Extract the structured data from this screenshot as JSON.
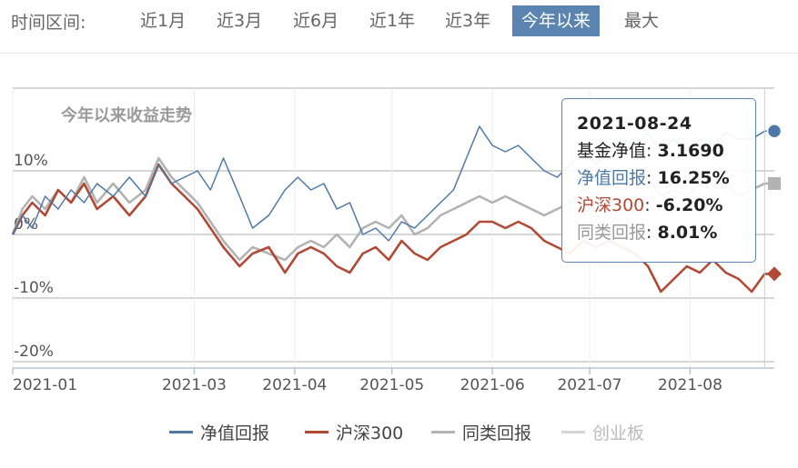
{
  "range_bar": {
    "label": "时间区间:",
    "options": [
      "近1月",
      "近3月",
      "近6月",
      "近1年",
      "近3年",
      "今年以来",
      "最大"
    ],
    "active_index": 5
  },
  "colors": {
    "nav_return": "#4e79a7",
    "hs300": "#b14a35",
    "peer": "#b3b3b3",
    "cyb": "#d4d4d4",
    "grid": "#c8c8c8",
    "axis": "#b5c5d8",
    "accent": "#5b84b1"
  },
  "chart_data": {
    "type": "line",
    "title": "今年以来收益走势",
    "y_unit": "%",
    "ylim": [
      -21,
      23
    ],
    "yticks": [
      -20,
      -10,
      0,
      10
    ],
    "ytick_labels": [
      "-20%",
      "-10%",
      "0%",
      "10%"
    ],
    "x_start": "2021-01-04",
    "x_end": "2021-08-27",
    "xticks": [
      "2021-01-04",
      "2021-03-01",
      "2021-04-01",
      "2021-05-01",
      "2021-06-01",
      "2021-07-01",
      "2021-08-01"
    ],
    "xtick_labels": [
      "2021-01",
      "2021-03",
      "2021-04",
      "2021-05",
      "2021-06",
      "2021-07",
      "2021-08"
    ],
    "grid": true,
    "legend_position": "bottom",
    "series": [
      {
        "name": "净值回报",
        "values": [
          [
            "2021-01-04",
            0
          ],
          [
            "2021-01-07",
            3
          ],
          [
            "2021-01-10",
            1
          ],
          [
            "2021-01-14",
            6
          ],
          [
            "2021-01-18",
            4
          ],
          [
            "2021-01-22",
            7
          ],
          [
            "2021-01-26",
            5
          ],
          [
            "2021-01-30",
            8
          ],
          [
            "2021-02-04",
            6
          ],
          [
            "2021-02-09",
            9
          ],
          [
            "2021-02-14",
            6
          ],
          [
            "2021-02-18",
            11
          ],
          [
            "2021-02-22",
            8
          ],
          [
            "2021-02-26",
            9
          ],
          [
            "2021-03-02",
            10
          ],
          [
            "2021-03-06",
            7
          ],
          [
            "2021-03-10",
            12
          ],
          [
            "2021-03-15",
            6
          ],
          [
            "2021-03-19",
            1
          ],
          [
            "2021-03-24",
            3
          ],
          [
            "2021-03-29",
            7
          ],
          [
            "2021-04-02",
            9
          ],
          [
            "2021-04-06",
            7
          ],
          [
            "2021-04-10",
            8
          ],
          [
            "2021-04-14",
            4
          ],
          [
            "2021-04-18",
            5
          ],
          [
            "2021-04-22",
            0
          ],
          [
            "2021-04-26",
            1
          ],
          [
            "2021-04-30",
            -1
          ],
          [
            "2021-05-04",
            2
          ],
          [
            "2021-05-08",
            1
          ],
          [
            "2021-05-12",
            3
          ],
          [
            "2021-05-16",
            5
          ],
          [
            "2021-05-20",
            7
          ],
          [
            "2021-05-24",
            12
          ],
          [
            "2021-05-28",
            17
          ],
          [
            "2021-06-01",
            14
          ],
          [
            "2021-06-05",
            13
          ],
          [
            "2021-06-09",
            14
          ],
          [
            "2021-06-13",
            12
          ],
          [
            "2021-06-17",
            10
          ],
          [
            "2021-06-21",
            9
          ],
          [
            "2021-06-25",
            11
          ],
          [
            "2021-06-29",
            13
          ],
          [
            "2021-07-03",
            11
          ],
          [
            "2021-07-07",
            13
          ],
          [
            "2021-07-11",
            15
          ],
          [
            "2021-07-15",
            14
          ],
          [
            "2021-07-19",
            16
          ],
          [
            "2021-07-23",
            13
          ],
          [
            "2021-07-27",
            15
          ],
          [
            "2021-07-31",
            13
          ],
          [
            "2021-08-04",
            15
          ],
          [
            "2021-08-08",
            14
          ],
          [
            "2021-08-12",
            16
          ],
          [
            "2021-08-16",
            15
          ],
          [
            "2021-08-20",
            15
          ],
          [
            "2021-08-24",
            16.25
          ],
          [
            "2021-08-27",
            16.25
          ]
        ]
      },
      {
        "name": "沪深300",
        "values": [
          [
            "2021-01-04",
            0
          ],
          [
            "2021-01-07",
            3
          ],
          [
            "2021-01-10",
            5
          ],
          [
            "2021-01-14",
            3
          ],
          [
            "2021-01-18",
            7
          ],
          [
            "2021-01-22",
            5
          ],
          [
            "2021-01-26",
            8
          ],
          [
            "2021-01-30",
            4
          ],
          [
            "2021-02-04",
            6
          ],
          [
            "2021-02-09",
            3
          ],
          [
            "2021-02-14",
            6
          ],
          [
            "2021-02-18",
            11
          ],
          [
            "2021-02-22",
            8
          ],
          [
            "2021-02-26",
            6
          ],
          [
            "2021-03-02",
            4
          ],
          [
            "2021-03-06",
            1
          ],
          [
            "2021-03-10",
            -2
          ],
          [
            "2021-03-15",
            -5
          ],
          [
            "2021-03-19",
            -3
          ],
          [
            "2021-03-24",
            -2
          ],
          [
            "2021-03-29",
            -6
          ],
          [
            "2021-04-02",
            -3
          ],
          [
            "2021-04-06",
            -2
          ],
          [
            "2021-04-10",
            -3
          ],
          [
            "2021-04-14",
            -5
          ],
          [
            "2021-04-18",
            -6
          ],
          [
            "2021-04-22",
            -3
          ],
          [
            "2021-04-26",
            -2
          ],
          [
            "2021-04-30",
            -4
          ],
          [
            "2021-05-04",
            -1
          ],
          [
            "2021-05-08",
            -3
          ],
          [
            "2021-05-12",
            -4
          ],
          [
            "2021-05-16",
            -2
          ],
          [
            "2021-05-20",
            -1
          ],
          [
            "2021-05-24",
            0
          ],
          [
            "2021-05-28",
            2
          ],
          [
            "2021-06-01",
            2
          ],
          [
            "2021-06-05",
            1
          ],
          [
            "2021-06-09",
            2
          ],
          [
            "2021-06-13",
            1
          ],
          [
            "2021-06-17",
            -1
          ],
          [
            "2021-06-21",
            -2
          ],
          [
            "2021-06-25",
            -3
          ],
          [
            "2021-06-29",
            -1
          ],
          [
            "2021-07-03",
            -2
          ],
          [
            "2021-07-07",
            -1
          ],
          [
            "2021-07-11",
            -2
          ],
          [
            "2021-07-15",
            -3
          ],
          [
            "2021-07-19",
            -5
          ],
          [
            "2021-07-23",
            -9
          ],
          [
            "2021-07-27",
            -7
          ],
          [
            "2021-07-31",
            -5
          ],
          [
            "2021-08-04",
            -6
          ],
          [
            "2021-08-08",
            -4
          ],
          [
            "2021-08-12",
            -6
          ],
          [
            "2021-08-16",
            -7
          ],
          [
            "2021-08-20",
            -9
          ],
          [
            "2021-08-24",
            -6.2
          ],
          [
            "2021-08-27",
            -6.2
          ]
        ]
      },
      {
        "name": "同类回报",
        "values": [
          [
            "2021-01-04",
            0
          ],
          [
            "2021-01-07",
            4
          ],
          [
            "2021-01-10",
            6
          ],
          [
            "2021-01-14",
            4
          ],
          [
            "2021-01-18",
            7
          ],
          [
            "2021-01-22",
            5
          ],
          [
            "2021-01-26",
            9
          ],
          [
            "2021-01-30",
            5
          ],
          [
            "2021-02-04",
            8
          ],
          [
            "2021-02-09",
            5
          ],
          [
            "2021-02-14",
            7
          ],
          [
            "2021-02-18",
            12
          ],
          [
            "2021-02-22",
            9
          ],
          [
            "2021-02-26",
            7
          ],
          [
            "2021-03-02",
            5
          ],
          [
            "2021-03-06",
            2
          ],
          [
            "2021-03-10",
            -1
          ],
          [
            "2021-03-15",
            -4
          ],
          [
            "2021-03-19",
            -2
          ],
          [
            "2021-03-24",
            -3
          ],
          [
            "2021-03-29",
            -4
          ],
          [
            "2021-04-02",
            -2
          ],
          [
            "2021-04-06",
            -1
          ],
          [
            "2021-04-10",
            -2
          ],
          [
            "2021-04-14",
            0
          ],
          [
            "2021-04-18",
            -2
          ],
          [
            "2021-04-22",
            1
          ],
          [
            "2021-04-26",
            2
          ],
          [
            "2021-04-30",
            1
          ],
          [
            "2021-05-04",
            3
          ],
          [
            "2021-05-08",
            0
          ],
          [
            "2021-05-12",
            1
          ],
          [
            "2021-05-16",
            3
          ],
          [
            "2021-05-20",
            4
          ],
          [
            "2021-05-24",
            5
          ],
          [
            "2021-05-28",
            6
          ],
          [
            "2021-06-01",
            5
          ],
          [
            "2021-06-05",
            6
          ],
          [
            "2021-06-09",
            5
          ],
          [
            "2021-06-13",
            4
          ],
          [
            "2021-06-17",
            3
          ],
          [
            "2021-06-21",
            4
          ],
          [
            "2021-06-25",
            5
          ],
          [
            "2021-06-29",
            7
          ],
          [
            "2021-07-03",
            6
          ],
          [
            "2021-07-07",
            8
          ],
          [
            "2021-07-11",
            7
          ],
          [
            "2021-07-15",
            8
          ],
          [
            "2021-07-19",
            9
          ],
          [
            "2021-07-23",
            6
          ],
          [
            "2021-07-27",
            7
          ],
          [
            "2021-07-31",
            6
          ],
          [
            "2021-08-04",
            8
          ],
          [
            "2021-08-08",
            7
          ],
          [
            "2021-08-12",
            8
          ],
          [
            "2021-08-16",
            6
          ],
          [
            "2021-08-20",
            7
          ],
          [
            "2021-08-24",
            8.01
          ],
          [
            "2021-08-27",
            8.01
          ]
        ]
      }
    ],
    "end_markers": [
      {
        "series": 0,
        "shape": "circle",
        "value": 16.25
      },
      {
        "series": 2,
        "shape": "square",
        "value": 8.01
      },
      {
        "series": 1,
        "shape": "diamond",
        "value": -6.2
      }
    ],
    "tooltip": {
      "date": "2021-08-24",
      "rows": [
        {
          "label": "基金净值",
          "value": "3.1690"
        },
        {
          "label": "净值回报",
          "value": "16.25%"
        },
        {
          "label": "沪深300",
          "value": "-6.20%"
        },
        {
          "label": "同类回报",
          "value": "8.01%"
        }
      ]
    }
  },
  "legend": {
    "items": [
      {
        "label": "净值回报",
        "enabled": true
      },
      {
        "label": "沪深300",
        "enabled": true
      },
      {
        "label": "同类回报",
        "enabled": true
      },
      {
        "label": "创业板",
        "enabled": false
      }
    ]
  }
}
